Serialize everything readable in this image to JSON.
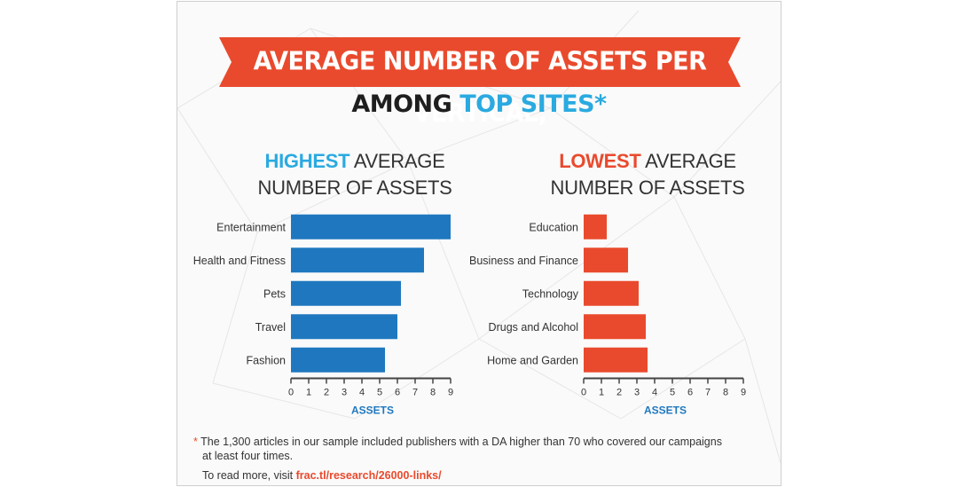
{
  "title": {
    "line1": "AVERAGE NUMBER OF ASSETS PER VERTICAL,",
    "line2_prefix": "AMONG ",
    "line2_highlight": "TOP SITES",
    "line2_suffix": "*"
  },
  "colors": {
    "banner": "#e94a2d",
    "highest": "#1f78bf",
    "lowest": "#e94a2d",
    "highlight_blue": "#2aaae0",
    "axis": "#444444",
    "axis_label": "#1f78bf"
  },
  "chart_data": [
    {
      "type": "bar",
      "orientation": "horizontal",
      "title_highlight": "HIGHEST",
      "title_rest": " AVERAGE",
      "title_line2": "NUMBER OF ASSETS",
      "categories": [
        "Entertainment",
        "Health and Fitness",
        "Pets",
        "Travel",
        "Fashion"
      ],
      "values": [
        9.0,
        7.5,
        6.2,
        6.0,
        5.3
      ],
      "xlabel": "ASSETS",
      "xlim": [
        0,
        9
      ],
      "xticks": [
        "0",
        "1",
        "2",
        "3",
        "4",
        "5",
        "6",
        "7",
        "8",
        "9"
      ],
      "color": "#1f78bf"
    },
    {
      "type": "bar",
      "orientation": "horizontal",
      "title_highlight": "LOWEST",
      "title_rest": " AVERAGE",
      "title_line2": "NUMBER OF ASSETS",
      "categories": [
        "Education",
        "Business and Finance",
        "Technology",
        "Drugs and Alcohol",
        "Home and Garden"
      ],
      "values": [
        1.3,
        2.5,
        3.1,
        3.5,
        3.6
      ],
      "xlabel": "ASSETS",
      "xlim": [
        0,
        9
      ],
      "xticks": [
        "0",
        "1",
        "2",
        "3",
        "4",
        "5",
        "6",
        "7",
        "8",
        "9"
      ],
      "color": "#e94a2d"
    }
  ],
  "footnote": {
    "star": "*",
    "line1": " The 1,300 articles in our sample included publishers with a DA higher than 70 who covered our campaigns",
    "line2": "at least four times.",
    "read_more": "To read more, visit ",
    "link": "frac.tl/research/26000-links/"
  }
}
